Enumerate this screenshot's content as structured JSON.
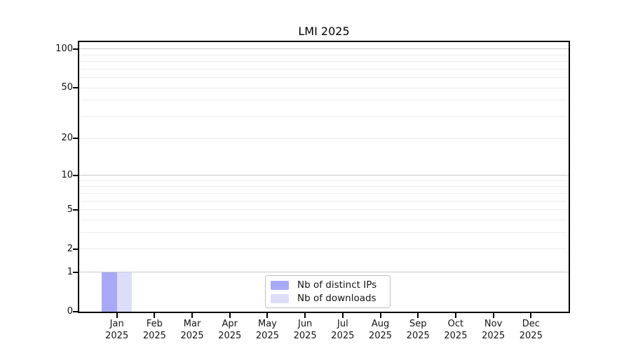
{
  "figure": {
    "title": "LMI 2025"
  },
  "chart_data": {
    "type": "bar",
    "title": "LMI 2025",
    "x_categories": [
      {
        "month": "Jan",
        "year": "2025"
      },
      {
        "month": "Feb",
        "year": "2025"
      },
      {
        "month": "Mar",
        "year": "2025"
      },
      {
        "month": "Apr",
        "year": "2025"
      },
      {
        "month": "May",
        "year": "2025"
      },
      {
        "month": "Jun",
        "year": "2025"
      },
      {
        "month": "Jul",
        "year": "2025"
      },
      {
        "month": "Aug",
        "year": "2025"
      },
      {
        "month": "Sep",
        "year": "2025"
      },
      {
        "month": "Oct",
        "year": "2025"
      },
      {
        "month": "Nov",
        "year": "2025"
      },
      {
        "month": "Dec",
        "year": "2025"
      }
    ],
    "series": [
      {
        "name": "Nb of distinct IPs",
        "color": "#a8a9f6",
        "values": [
          1,
          0,
          0,
          0,
          0,
          0,
          0,
          0,
          0,
          0,
          0,
          0
        ]
      },
      {
        "name": "Nb of downloads",
        "color": "#dcdef9",
        "values": [
          1,
          0,
          0,
          0,
          0,
          0,
          0,
          0,
          0,
          0,
          0,
          0
        ]
      }
    ],
    "y_scale": "log1p",
    "ylim": [
      0,
      113
    ],
    "y_tick_labels": [
      "0",
      "1",
      "2",
      "5",
      "10",
      "20",
      "50",
      "100"
    ],
    "y_tick_values": [
      0,
      1,
      2,
      5,
      10,
      20,
      50,
      100
    ],
    "y_major_gridlines": [
      1,
      10,
      100
    ],
    "y_minor_gridlines": [
      2,
      3,
      4,
      5,
      6,
      7,
      8,
      9,
      20,
      30,
      40,
      50,
      60,
      70,
      80,
      90
    ],
    "grid": true,
    "legend_position": "lower center",
    "colors": {
      "major_gridline": "#c9c9c9",
      "minor_gridline": "#ececec",
      "axis": "#000000",
      "text": "#141414",
      "legend_border": "#c0c0c0",
      "background": "#ffffff"
    }
  }
}
